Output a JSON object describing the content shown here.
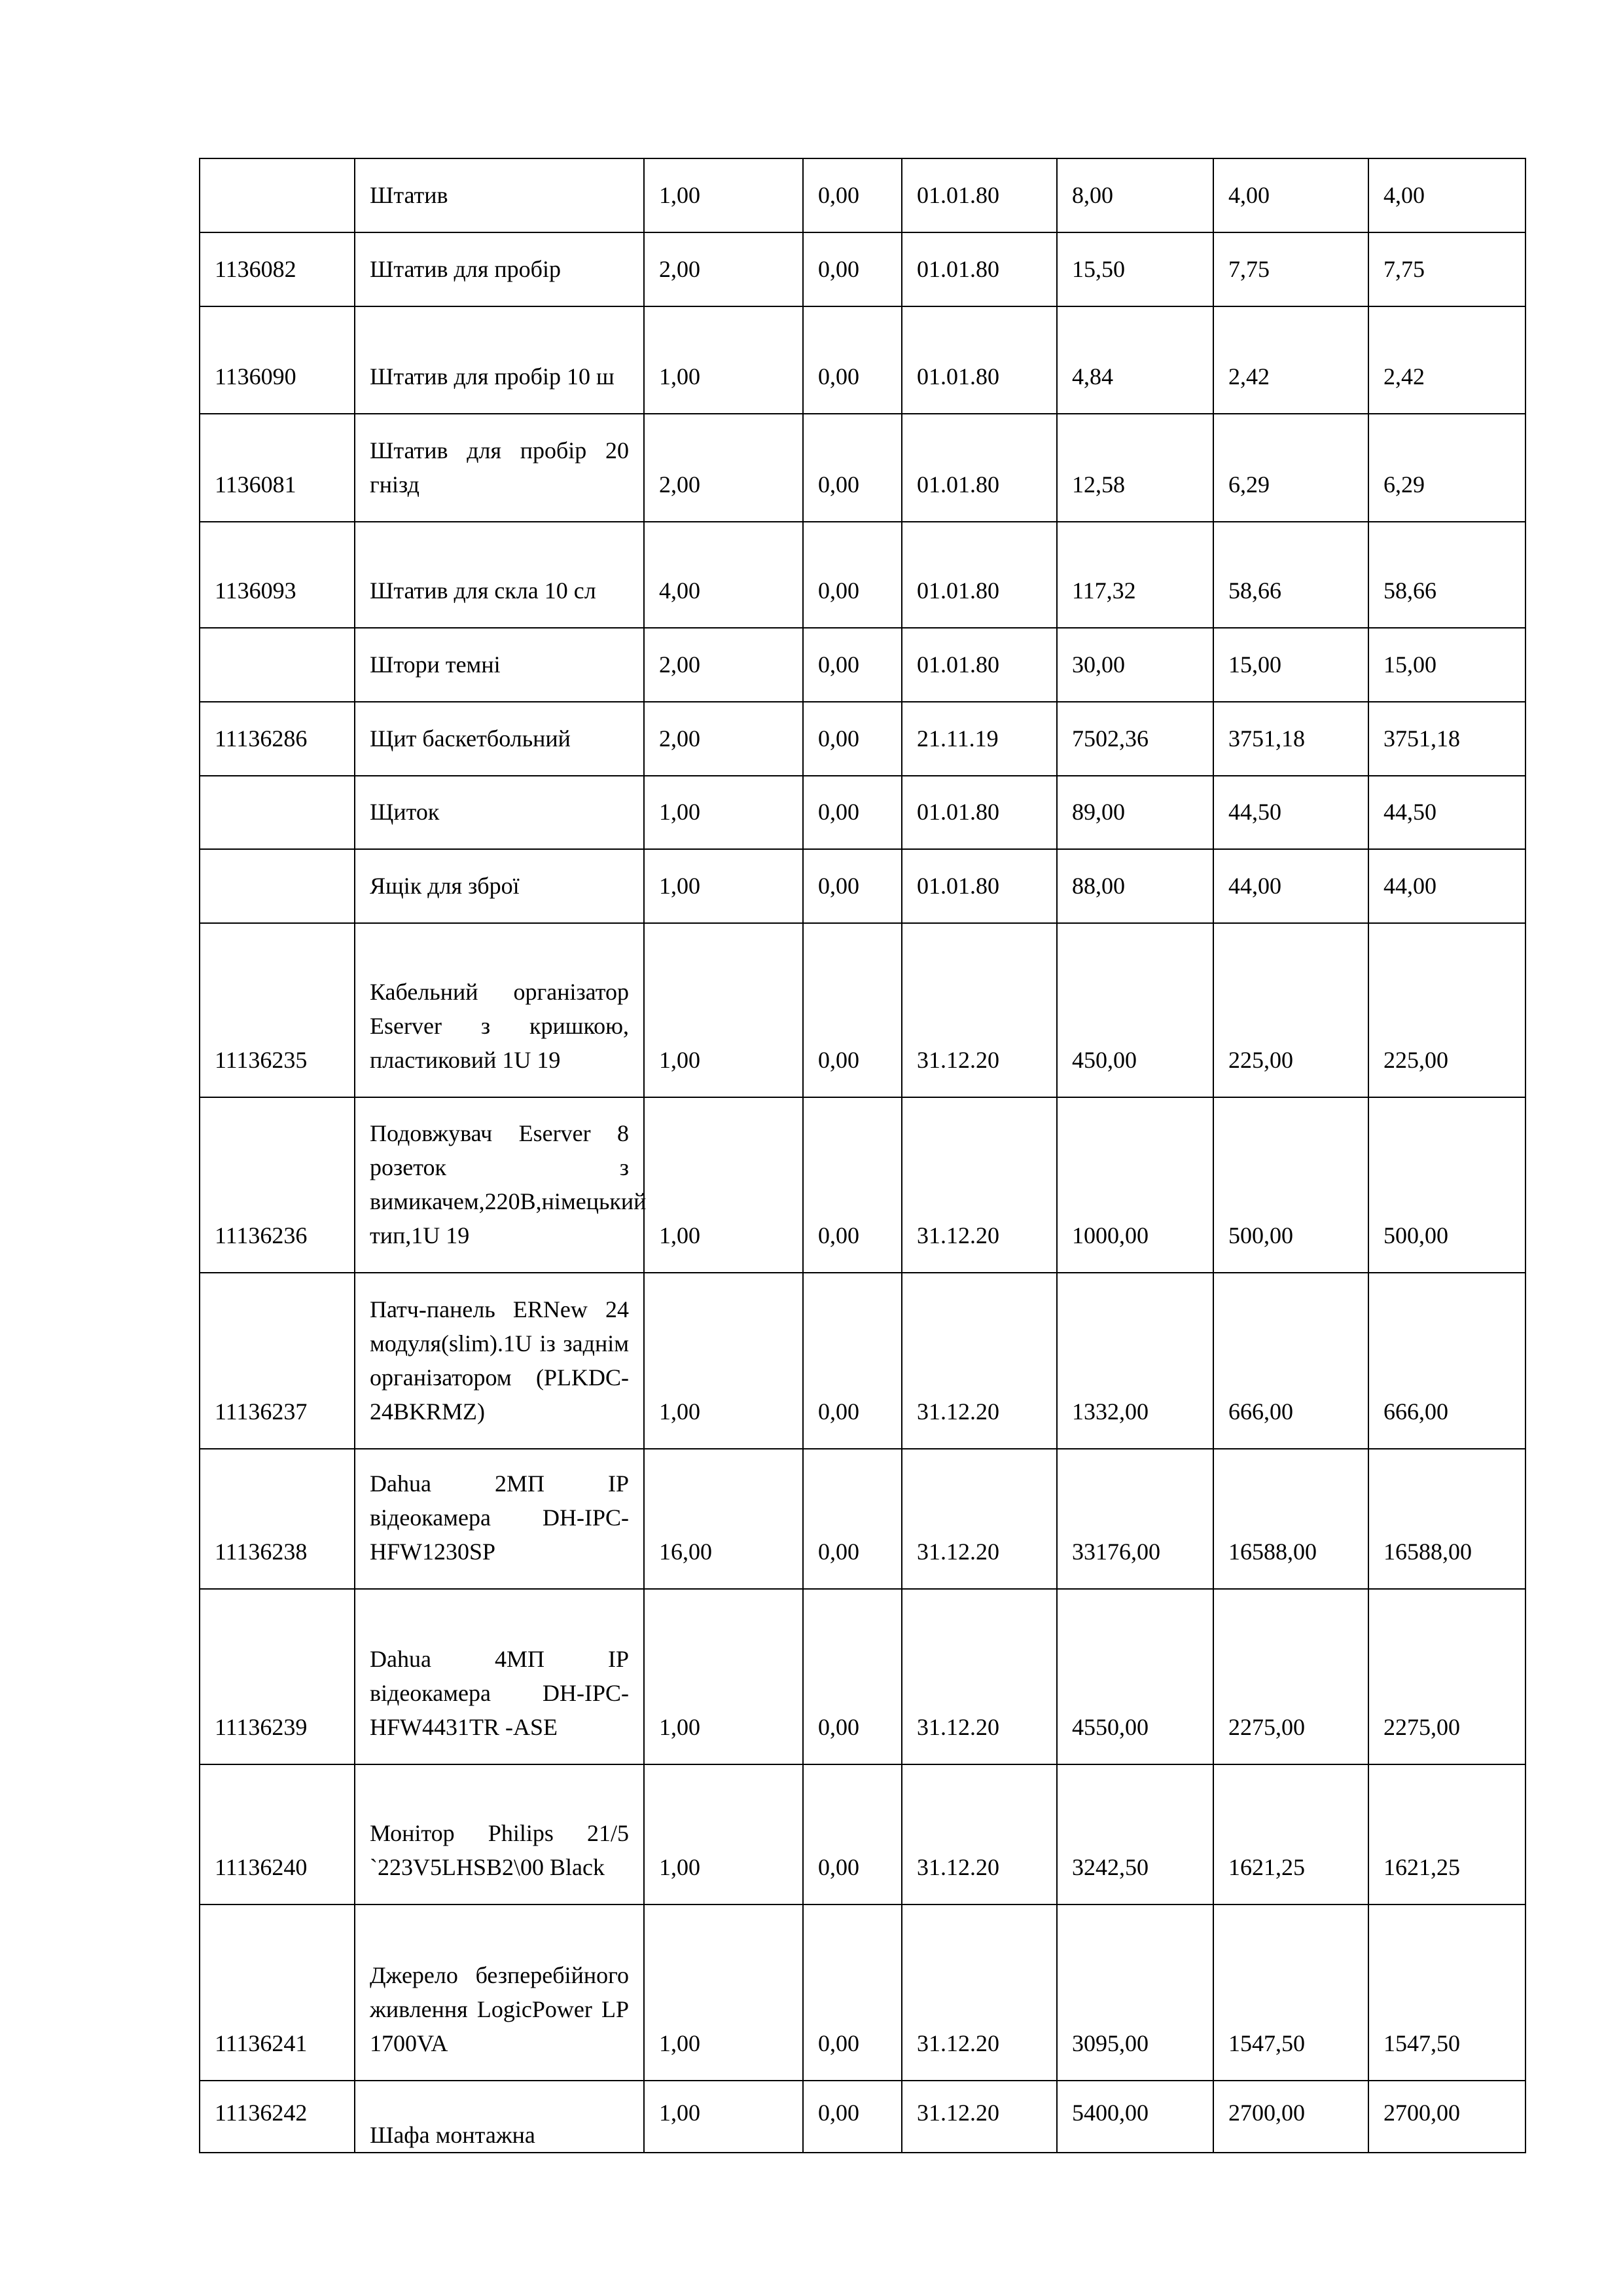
{
  "rows": [
    {
      "code": "",
      "name": "Штатив",
      "qty": "1,00",
      "c3": "0,00",
      "date": "01.01.80",
      "sum": "8,00",
      "v1": "4,00",
      "v2": "4,00"
    },
    {
      "code": "1136082",
      "name": "Штатив для пробір",
      "qty": "2,00",
      "c3": "0,00",
      "date": "01.01.80",
      "sum": "15,50",
      "v1": "7,75",
      "v2": "7,75"
    },
    {
      "code": "1136090",
      "name": "Штатив для пробір 10 ш",
      "qty": "1,00",
      "c3": "0,00",
      "date": "01.01.80",
      "sum": "4,84",
      "v1": "2,42",
      "v2": "2,42"
    },
    {
      "code": "1136081",
      "name": "Штатив для пробір 20 гнізд",
      "qty": "2,00",
      "c3": "0,00",
      "date": "01.01.80",
      "sum": "12,58",
      "v1": "6,29",
      "v2": "6,29"
    },
    {
      "code": "1136093",
      "name": "Штатив для скла 10 сл",
      "qty": "4,00",
      "c3": "0,00",
      "date": "01.01.80",
      "sum": "117,32",
      "v1": "58,66",
      "v2": "58,66"
    },
    {
      "code": "",
      "name": "Штори темні",
      "qty": "2,00",
      "c3": "0,00",
      "date": "01.01.80",
      "sum": "30,00",
      "v1": "15,00",
      "v2": "15,00"
    },
    {
      "code": "11136286",
      "name": "Щит баскетбольний",
      "qty": "2,00",
      "c3": "0,00",
      "date": "21.11.19",
      "sum": "7502,36",
      "v1": "3751,18",
      "v2": "3751,18"
    },
    {
      "code": "",
      "name": "Щиток",
      "qty": "1,00",
      "c3": "0,00",
      "date": "01.01.80",
      "sum": "89,00",
      "v1": "44,50",
      "v2": "44,50"
    },
    {
      "code": "",
      "name": "Ящік для зброї",
      "qty": "1,00",
      "c3": "0,00",
      "date": "01.01.80",
      "sum": "88,00",
      "v1": "44,00",
      "v2": "44,00"
    },
    {
      "code": "11136235",
      "name": "Кабельний організатор Eserver з кришкою, пластиковий 1U 19",
      "qty": "1,00",
      "c3": "0,00",
      "date": "31.12.20",
      "sum": "450,00",
      "v1": "225,00",
      "v2": "225,00"
    },
    {
      "code": "11136236",
      "name": "Подовжувач Eserver 8 розеток з вимикачем,220В,німецький тип,1U 19",
      "qty": "1,00",
      "c3": "0,00",
      "date": "31.12.20",
      "sum": "1000,00",
      "v1": "500,00",
      "v2": "500,00"
    },
    {
      "code": "11136237",
      "name": "Патч-панель ERNew 24 модуля(slim).1U із заднім організатором (PLKDC-24BKRMZ)",
      "qty": "1,00",
      "c3": "0,00",
      "date": "31.12.20",
      "sum": "1332,00",
      "v1": "666,00",
      "v2": "666,00"
    },
    {
      "code": "11136238",
      "name": "Dahua 2МП IP відеокамера DH-IPC-HFW1230SP",
      "qty": "16,00",
      "c3": "0,00",
      "date": "31.12.20",
      "sum": "33176,00",
      "v1": "16588,00",
      "v2": "16588,00"
    },
    {
      "code": "11136239",
      "name": "Dahua 4МП IP відеокамера DH-IPC-HFW4431TR -ASE",
      "qty": "1,00",
      "c3": "0,00",
      "date": "31.12.20",
      "sum": "4550,00",
      "v1": "2275,00",
      "v2": "2275,00"
    },
    {
      "code": "11136240",
      "name": "Монітор Philips 21/5 `223V5LHSB2\\00 Black",
      "qty": "1,00",
      "c3": "0,00",
      "date": "31.12.20",
      "sum": "3242,50",
      "v1": "1621,25",
      "v2": "1621,25"
    },
    {
      "code": "11136241",
      "name": "Джерело безперебійного живлення LogicPower LP 1700VA",
      "qty": "1,00",
      "c3": "0,00",
      "date": "31.12.20",
      "sum": "3095,00",
      "v1": "1547,50",
      "v2": "1547,50"
    },
    {
      "code": "11136242",
      "name": "Шафа монтажна",
      "qty": "1,00",
      "c3": "0,00",
      "date": "31.12.20",
      "sum": "5400,00",
      "v1": "2700,00",
      "v2": "2700,00"
    }
  ]
}
